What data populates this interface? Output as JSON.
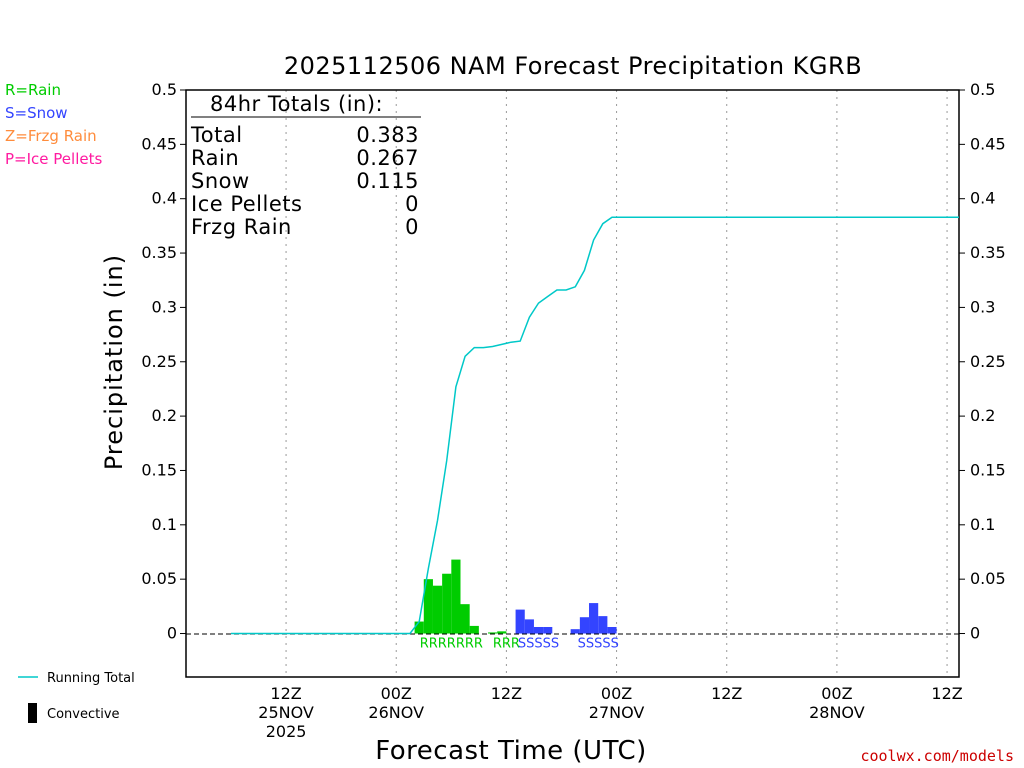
{
  "chart_data": {
    "type": "bar",
    "title": "2025112506 NAM Forecast Precipitation KGRB",
    "xlabel": "Forecast Time (UTC)",
    "ylabel": "Precipitation (in)",
    "ylim": [
      -0.04,
      0.5
    ],
    "y_ticks": [
      0,
      0.05,
      0.1,
      0.15,
      0.2,
      0.25,
      0.3,
      0.35,
      0.4,
      0.45,
      0.5
    ],
    "y_tick_labels": [
      "0",
      "0.05",
      "0.1",
      "0.15",
      "0.2",
      "0.25",
      "0.3",
      "0.35",
      "0.4",
      "0.45",
      "0.5"
    ],
    "x_unit": "forecast hour since 2025-11-25 06Z",
    "xlim": [
      -4.9,
      79.3
    ],
    "x_ticks": [
      {
        "hour": 6,
        "lines": [
          "12Z",
          "25NOV",
          "2025"
        ]
      },
      {
        "hour": 18,
        "lines": [
          "00Z",
          "26NOV"
        ]
      },
      {
        "hour": 30,
        "lines": [
          "12Z"
        ]
      },
      {
        "hour": 42,
        "lines": [
          "00Z",
          "27NOV"
        ]
      },
      {
        "hour": 54,
        "lines": [
          "12Z"
        ]
      },
      {
        "hour": 66,
        "lines": [
          "00Z",
          "28NOV"
        ]
      },
      {
        "hour": 78,
        "lines": [
          "12Z"
        ]
      }
    ],
    "legend": [
      {
        "code": "R",
        "text": "R=Rain",
        "color": "#00cc00"
      },
      {
        "code": "S",
        "text": "S=Snow",
        "color": "#3344ff"
      },
      {
        "code": "Z",
        "text": "Z=Frzg Rain",
        "color": "#ff8c3c"
      },
      {
        "code": "P",
        "text": "P=Ice Pellets",
        "color": "#ff1aa0"
      }
    ],
    "line_legend": {
      "label": "Running Total",
      "color": "#00c8c8"
    },
    "bar_legend": {
      "label": "Convective"
    },
    "bar_series": [
      {
        "hour": 21,
        "value": 0.011,
        "type": "R"
      },
      {
        "hour": 22,
        "value": 0.05,
        "type": "R"
      },
      {
        "hour": 23,
        "value": 0.044,
        "type": "R"
      },
      {
        "hour": 24,
        "value": 0.055,
        "type": "R"
      },
      {
        "hour": 25,
        "value": 0.068,
        "type": "R"
      },
      {
        "hour": 26,
        "value": 0.027,
        "type": "R"
      },
      {
        "hour": 27,
        "value": 0.007,
        "type": "R"
      },
      {
        "hour": 29,
        "value": 0.001,
        "type": "R"
      },
      {
        "hour": 30,
        "value": 0.002,
        "type": "R"
      },
      {
        "hour": 32,
        "value": 0.022,
        "type": "S"
      },
      {
        "hour": 33,
        "value": 0.013,
        "type": "S"
      },
      {
        "hour": 34,
        "value": 0.006,
        "type": "S"
      },
      {
        "hour": 35,
        "value": 0.006,
        "type": "S"
      },
      {
        "hour": 38,
        "value": 0.004,
        "type": "S"
      },
      {
        "hour": 39,
        "value": 0.015,
        "type": "S"
      },
      {
        "hour": 40,
        "value": 0.028,
        "type": "S"
      },
      {
        "hour": 41,
        "value": 0.016,
        "type": "S"
      },
      {
        "hour": 42,
        "value": 0.006,
        "type": "S"
      }
    ],
    "ptype_labels": [
      {
        "text": "RRRRRRR",
        "type": "R",
        "hour": 24
      },
      {
        "text": "RRR",
        "type": "R",
        "hour": 30
      },
      {
        "text": "SSSSS",
        "type": "S",
        "hour": 33.5
      },
      {
        "text": "SSSSS",
        "type": "S",
        "hour": 40
      }
    ],
    "running_total": {
      "x": [
        0,
        19.5,
        20.5,
        21.5,
        22.5,
        23.5,
        24.5,
        25.5,
        26.5,
        27.5,
        28.5,
        29.5,
        30.5,
        31.5,
        32.5,
        33.5,
        34.5,
        35.5,
        36.5,
        37.5,
        38.5,
        39.5,
        40.5,
        41.5,
        42.5,
        79.3
      ],
      "y": [
        0,
        0,
        0.011,
        0.06,
        0.104,
        0.159,
        0.227,
        0.255,
        0.263,
        0.263,
        0.264,
        0.266,
        0.268,
        0.269,
        0.291,
        0.304,
        0.31,
        0.316,
        0.316,
        0.319,
        0.334,
        0.362,
        0.377,
        0.383,
        0.383,
        0.383
      ]
    },
    "totals_box": {
      "heading": "84hr Totals (in):",
      "rows": [
        {
          "label": "Total",
          "value": "0.383"
        },
        {
          "label": "Rain",
          "value": "0.267"
        },
        {
          "label": "Snow",
          "value": "0.115"
        },
        {
          "label": "Ice Pellets",
          "value": "0"
        },
        {
          "label": "Frzg Rain",
          "value": "0"
        }
      ]
    },
    "credit": "coolwx.com/models"
  }
}
